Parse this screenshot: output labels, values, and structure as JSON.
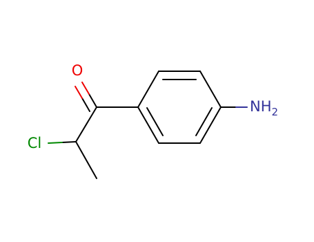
{
  "atoms": [
    {
      "label": "O"
    },
    {
      "label": "Cl"
    },
    {
      "label": "NH",
      "subscript": "2"
    }
  ]
}
